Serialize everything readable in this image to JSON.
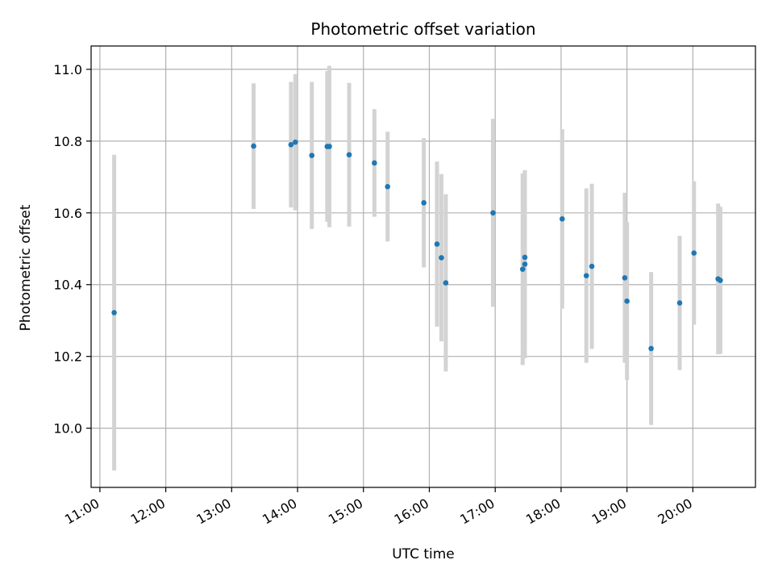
{
  "chart_data": {
    "type": "scatter",
    "title": "Photometric offset variation",
    "xlabel": "UTC time",
    "ylabel": "Photometric offset",
    "x_ticks": [
      "11:00",
      "12:00",
      "13:00",
      "14:00",
      "15:00",
      "16:00",
      "17:00",
      "18:00",
      "19:00",
      "20:00"
    ],
    "y_ticks": [
      "10.0",
      "10.2",
      "10.4",
      "10.6",
      "10.8",
      "11.0"
    ],
    "xlim": [
      "10:52",
      "20:57"
    ],
    "ylim": [
      9.835,
      11.065
    ],
    "grid": true,
    "marker_color": "#1f77b4",
    "errorbar_color": "#d3d3d3",
    "points": [
      {
        "x": "11:13",
        "y": 10.322,
        "err": 0.44
      },
      {
        "x": "13:20",
        "y": 10.786,
        "err": 0.175
      },
      {
        "x": "13:54",
        "y": 10.79,
        "err": 0.175
      },
      {
        "x": "13:58",
        "y": 10.797,
        "err": 0.19
      },
      {
        "x": "14:13",
        "y": 10.76,
        "err": 0.205
      },
      {
        "x": "14:27",
        "y": 10.785,
        "err": 0.21
      },
      {
        "x": "14:29",
        "y": 10.785,
        "err": 0.225
      },
      {
        "x": "14:47",
        "y": 10.762,
        "err": 0.2
      },
      {
        "x": "15:10",
        "y": 10.739,
        "err": 0.15
      },
      {
        "x": "15:22",
        "y": 10.673,
        "err": 0.153
      },
      {
        "x": "15:55",
        "y": 10.628,
        "err": 0.18
      },
      {
        "x": "16:07",
        "y": 10.513,
        "err": 0.23
      },
      {
        "x": "16:11",
        "y": 10.475,
        "err": 0.233
      },
      {
        "x": "16:15",
        "y": 10.405,
        "err": 0.247
      },
      {
        "x": "16:58",
        "y": 10.6,
        "err": 0.262
      },
      {
        "x": "17:25",
        "y": 10.443,
        "err": 0.267
      },
      {
        "x": "17:27",
        "y": 10.457,
        "err": 0.262
      },
      {
        "x": "17:27",
        "y": 10.476,
        "err": 0.24
      },
      {
        "x": "18:01",
        "y": 10.583,
        "err": 0.25
      },
      {
        "x": "18:23",
        "y": 10.425,
        "err": 0.243
      },
      {
        "x": "18:28",
        "y": 10.451,
        "err": 0.23
      },
      {
        "x": "18:58",
        "y": 10.419,
        "err": 0.237
      },
      {
        "x": "19:00",
        "y": 10.354,
        "err": 0.22
      },
      {
        "x": "19:22",
        "y": 10.222,
        "err": 0.213
      },
      {
        "x": "19:48",
        "y": 10.349,
        "err": 0.187
      },
      {
        "x": "20:01",
        "y": 10.488,
        "err": 0.2
      },
      {
        "x": "20:23",
        "y": 10.416,
        "err": 0.21
      },
      {
        "x": "20:25",
        "y": 10.412,
        "err": 0.205
      }
    ]
  }
}
